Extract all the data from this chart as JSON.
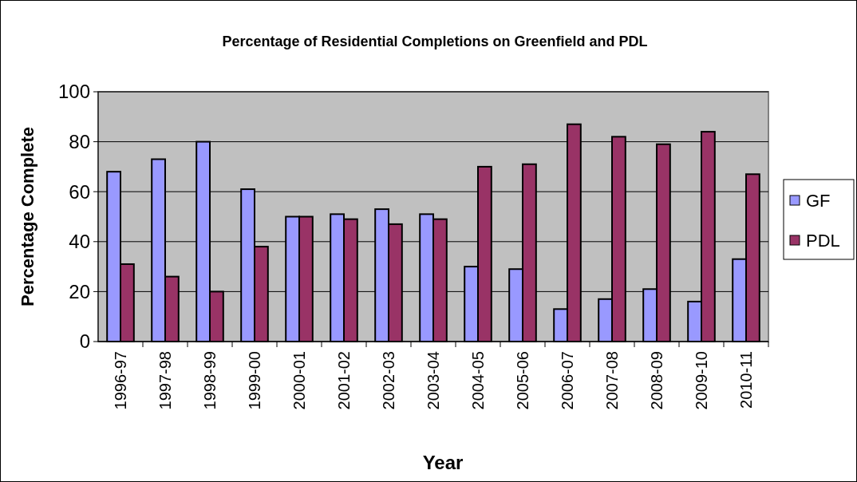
{
  "chart_data": {
    "type": "bar",
    "title": "Percentage of Residential Completions on Greenfield and PDL",
    "xlabel": "Year",
    "ylabel": "Percentage Complete",
    "categories": [
      "1996-97",
      "1997-98",
      "1998-99",
      "1999-00",
      "2000-01",
      "2001-02",
      "2002-03",
      "2003-04",
      "2004-05",
      "2005-06",
      "2006-07",
      "2007-08",
      "2008-09",
      "2009-10",
      "2010-11"
    ],
    "series": [
      {
        "name": "GF",
        "color": "#9999ff",
        "values": [
          68,
          73,
          80,
          61,
          50,
          51,
          53,
          51,
          30,
          29,
          13,
          17,
          21,
          16,
          33
        ]
      },
      {
        "name": "PDL",
        "color": "#993366",
        "values": [
          31,
          26,
          20,
          38,
          50,
          49,
          47,
          49,
          70,
          71,
          87,
          82,
          79,
          84,
          67
        ]
      }
    ],
    "ylim": [
      0,
      100
    ],
    "yticks": [
      0,
      20,
      40,
      60,
      80,
      100
    ],
    "grid": "y",
    "legend": "right"
  }
}
